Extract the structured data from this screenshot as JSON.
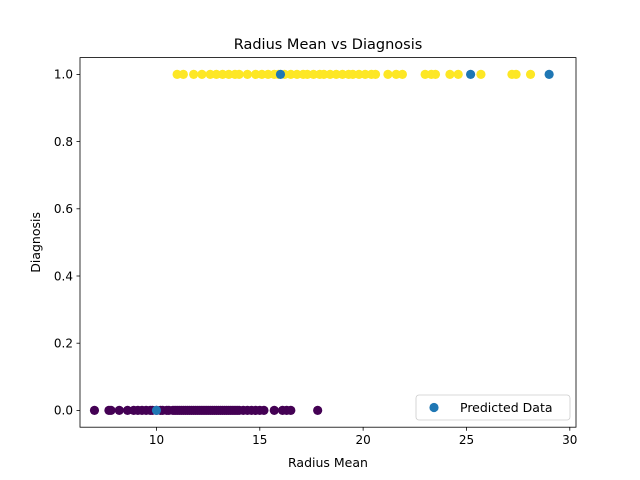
{
  "chart_data": {
    "type": "scatter",
    "title": "Radius Mean vs Diagnosis",
    "xlabel": "Radius Mean",
    "ylabel": "Diagnosis",
    "xlim": [
      6.3,
      30.3
    ],
    "ylim": [
      -0.05,
      1.05
    ],
    "xticks": [
      10,
      15,
      20,
      25,
      30
    ],
    "yticks": [
      0.0,
      0.2,
      0.4,
      0.6,
      0.8,
      1.0
    ],
    "xtick_labels": [
      "10",
      "15",
      "20",
      "25",
      "30"
    ],
    "ytick_labels": [
      "0.0",
      "0.2",
      "0.4",
      "0.6",
      "0.8",
      "1.0"
    ],
    "grid": false,
    "legend_position": "lower-right",
    "colors": {
      "class_0": "#440154",
      "class_1": "#fde725",
      "predicted": "#1f77b4"
    },
    "series": [
      {
        "color": "#440154",
        "x": [
          7.0,
          7.7,
          7.8,
          8.2,
          8.6,
          8.9,
          9.1,
          9.3,
          9.5,
          9.7,
          9.8,
          10.0,
          10.2,
          10.3,
          10.5,
          10.6,
          10.8,
          10.9,
          11.0,
          11.1,
          11.2,
          11.3,
          11.4,
          11.5,
          11.6,
          11.7,
          11.8,
          11.9,
          12.0,
          12.1,
          12.2,
          12.3,
          12.4,
          12.5,
          12.6,
          12.7,
          12.8,
          12.9,
          13.0,
          13.1,
          13.2,
          13.3,
          13.4,
          13.5,
          13.6,
          13.7,
          13.8,
          13.9,
          14.0,
          14.2,
          14.4,
          14.6,
          14.8,
          15.0,
          15.2,
          15.7,
          16.1,
          16.3,
          16.5,
          17.8
        ],
        "y": [
          0,
          0,
          0,
          0,
          0,
          0,
          0,
          0,
          0,
          0,
          0,
          0,
          0,
          0,
          0,
          0,
          0,
          0,
          0,
          0,
          0,
          0,
          0,
          0,
          0,
          0,
          0,
          0,
          0,
          0,
          0,
          0,
          0,
          0,
          0,
          0,
          0,
          0,
          0,
          0,
          0,
          0,
          0,
          0,
          0,
          0,
          0,
          0,
          0,
          0,
          0,
          0,
          0,
          0,
          0,
          0,
          0,
          0,
          0,
          0
        ]
      },
      {
        "color": "#fde725",
        "x": [
          11.0,
          11.3,
          11.8,
          12.2,
          12.6,
          12.9,
          13.2,
          13.5,
          13.8,
          14.0,
          14.4,
          14.8,
          15.1,
          15.4,
          15.7,
          15.9,
          16.2,
          16.5,
          16.8,
          17.1,
          17.3,
          17.6,
          17.9,
          18.1,
          18.4,
          18.7,
          19.0,
          19.3,
          19.5,
          19.8,
          20.1,
          20.4,
          20.6,
          21.2,
          21.6,
          21.9,
          23.0,
          23.3,
          23.5,
          24.2,
          24.6,
          25.7,
          27.2,
          27.4,
          28.1
        ],
        "y": [
          1,
          1,
          1,
          1,
          1,
          1,
          1,
          1,
          1,
          1,
          1,
          1,
          1,
          1,
          1,
          1,
          1,
          1,
          1,
          1,
          1,
          1,
          1,
          1,
          1,
          1,
          1,
          1,
          1,
          1,
          1,
          1,
          1,
          1,
          1,
          1,
          1,
          1,
          1,
          1,
          1,
          1,
          1,
          1,
          1
        ]
      },
      {
        "name": "Predicted Data",
        "color": "#1f77b4",
        "x": [
          10.0,
          16.0,
          25.2,
          29.0
        ],
        "y": [
          0,
          1,
          1,
          1
        ]
      }
    ]
  }
}
